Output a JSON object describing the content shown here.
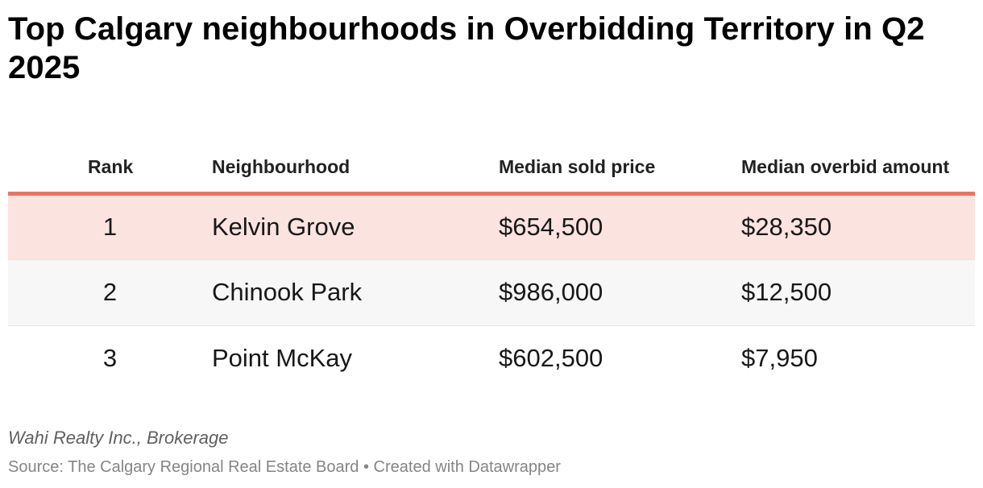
{
  "title": "Top Calgary neighbourhoods in Overbidding Territory in Q2 2025",
  "chart_data": {
    "type": "table",
    "columns": [
      "Rank",
      "Neighbourhood",
      "Median sold price",
      "Median overbid amount"
    ],
    "rows": [
      {
        "rank": "1",
        "neighbourhood": "Kelvin Grove",
        "median_sold_price": "$654,500",
        "median_overbid_amount": "$28,350"
      },
      {
        "rank": "2",
        "neighbourhood": "Chinook Park",
        "median_sold_price": "$986,000",
        "median_overbid_amount": "$12,500"
      },
      {
        "rank": "3",
        "neighbourhood": "Point McKay",
        "median_sold_price": "$602,500",
        "median_overbid_amount": "$7,950"
      }
    ],
    "highlight_row": 1,
    "highlight_color": "#fbe3e0",
    "header_rule_color": "#ea7461"
  },
  "footer": {
    "notes": "Wahi Realty Inc., Brokerage",
    "source": "Source: The Calgary Regional Real Estate Board • Created with Datawrapper"
  }
}
